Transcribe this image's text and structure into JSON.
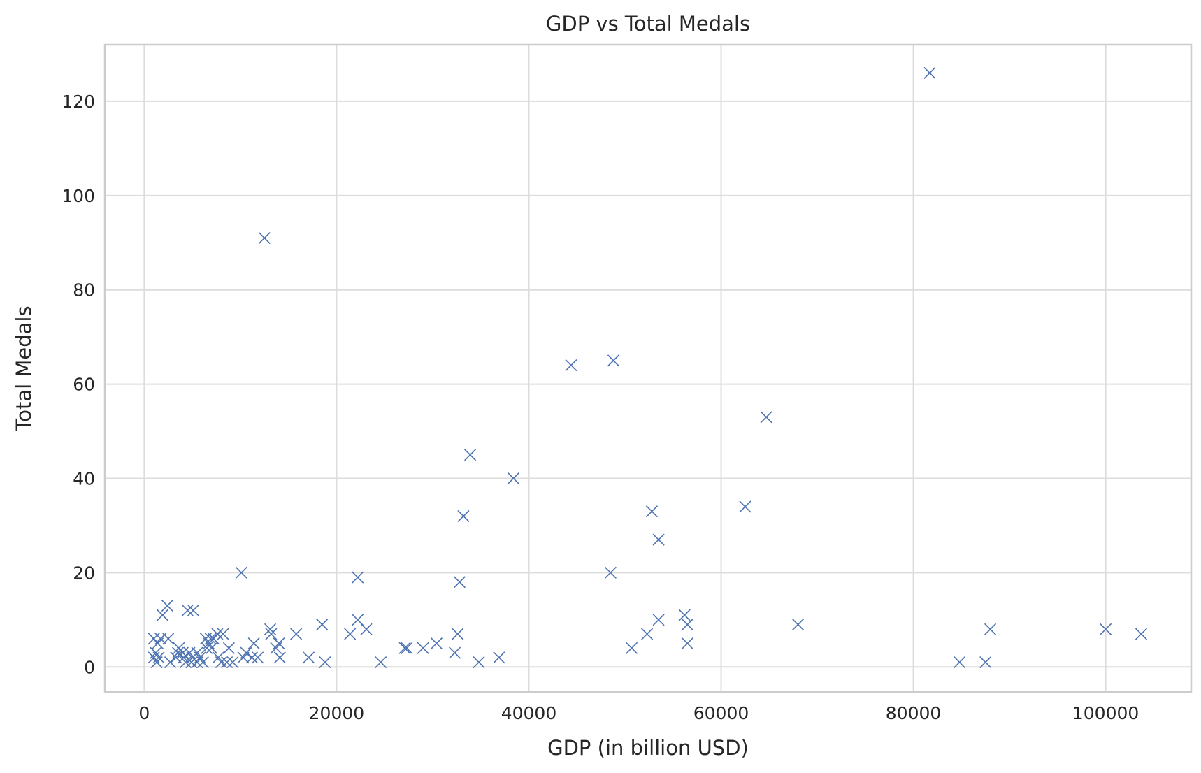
{
  "chart_data": {
    "type": "scatter",
    "title": "GDP vs Total Medals",
    "xlabel": "GDP (in billion USD)",
    "ylabel": "Total Medals",
    "marker": "x",
    "marker_color": "#4c72b0",
    "grid": true,
    "legend": "none",
    "xlim": [
      -4100,
      108900
    ],
    "ylim": [
      -5.3,
      132
    ],
    "xticks": [
      0,
      20000,
      40000,
      60000,
      80000,
      100000
    ],
    "yticks": [
      0,
      20,
      40,
      60,
      80,
      100,
      120
    ],
    "series": [
      {
        "points": [
          [
            81700,
            126
          ],
          [
            12500,
            91
          ],
          [
            48800,
            65
          ],
          [
            44400,
            64
          ],
          [
            64700,
            53
          ],
          [
            33900,
            45
          ],
          [
            38400,
            40
          ],
          [
            62500,
            34
          ],
          [
            52800,
            33
          ],
          [
            33200,
            32
          ],
          [
            53500,
            27
          ],
          [
            10100,
            20
          ],
          [
            48500,
            20
          ],
          [
            22200,
            19
          ],
          [
            32800,
            18
          ],
          [
            2400,
            13
          ],
          [
            4500,
            12
          ],
          [
            5100,
            12
          ],
          [
            1900,
            11
          ],
          [
            56200,
            11
          ],
          [
            22200,
            10
          ],
          [
            53500,
            10
          ],
          [
            18500,
            9
          ],
          [
            56500,
            9
          ],
          [
            68000,
            9
          ],
          [
            13100,
            8
          ],
          [
            23100,
            8
          ],
          [
            88000,
            8
          ],
          [
            100000,
            8
          ],
          [
            7600,
            7
          ],
          [
            8200,
            7
          ],
          [
            13200,
            7
          ],
          [
            15800,
            7
          ],
          [
            21400,
            7
          ],
          [
            32600,
            7
          ],
          [
            52300,
            7
          ],
          [
            103700,
            7
          ],
          [
            1000,
            6
          ],
          [
            1700,
            6
          ],
          [
            2500,
            6
          ],
          [
            6400,
            6
          ],
          [
            6900,
            6
          ],
          [
            7200,
            6
          ],
          [
            1400,
            5
          ],
          [
            6700,
            5
          ],
          [
            11400,
            5
          ],
          [
            14000,
            5
          ],
          [
            30400,
            5
          ],
          [
            56500,
            5
          ],
          [
            3600,
            4
          ],
          [
            6500,
            4
          ],
          [
            7000,
            4
          ],
          [
            8800,
            4
          ],
          [
            13700,
            4
          ],
          [
            27100,
            4
          ],
          [
            27300,
            4
          ],
          [
            29000,
            4
          ],
          [
            50700,
            4
          ],
          [
            1200,
            3
          ],
          [
            3500,
            3
          ],
          [
            4000,
            3
          ],
          [
            4700,
            3
          ],
          [
            5500,
            3
          ],
          [
            10600,
            3
          ],
          [
            32300,
            3
          ],
          [
            1000,
            2
          ],
          [
            1500,
            2
          ],
          [
            3300,
            2
          ],
          [
            4100,
            2
          ],
          [
            5000,
            2
          ],
          [
            5800,
            2
          ],
          [
            7700,
            2
          ],
          [
            10300,
            2
          ],
          [
            11200,
            2
          ],
          [
            11800,
            2
          ],
          [
            14100,
            2
          ],
          [
            17100,
            2
          ],
          [
            36900,
            2
          ],
          [
            1300,
            1
          ],
          [
            2700,
            1
          ],
          [
            4300,
            1
          ],
          [
            4900,
            1
          ],
          [
            5500,
            1
          ],
          [
            6100,
            1
          ],
          [
            8000,
            1
          ],
          [
            8600,
            1
          ],
          [
            9200,
            1
          ],
          [
            18800,
            1
          ],
          [
            24600,
            1
          ],
          [
            34800,
            1
          ],
          [
            84800,
            1
          ],
          [
            87500,
            1
          ]
        ]
      }
    ]
  }
}
